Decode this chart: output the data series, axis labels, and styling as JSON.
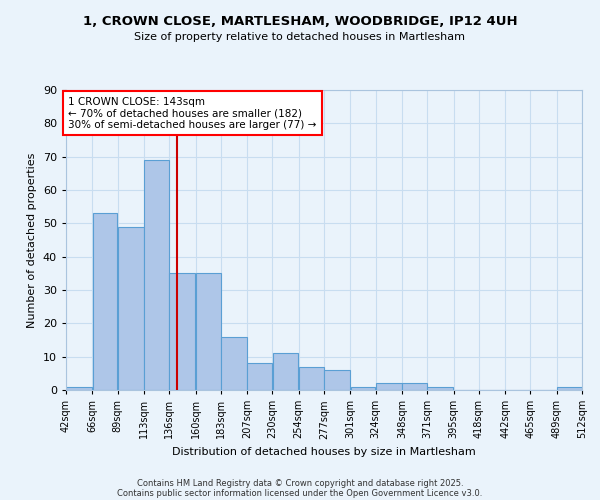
{
  "title_line1": "1, CROWN CLOSE, MARTLESHAM, WOODBRIDGE, IP12 4UH",
  "title_line2": "Size of property relative to detached houses in Martlesham",
  "xlabel": "Distribution of detached houses by size in Martlesham",
  "ylabel": "Number of detached properties",
  "bar_values": [
    1,
    53,
    49,
    69,
    35,
    35,
    16,
    8,
    11,
    7,
    6,
    1,
    2,
    2,
    1,
    0,
    0,
    0,
    0,
    1
  ],
  "bin_edges": [
    42,
    66,
    89,
    113,
    136,
    160,
    183,
    207,
    230,
    254,
    277,
    301,
    324,
    348,
    371,
    395,
    418,
    442,
    465,
    489,
    512
  ],
  "bin_labels": [
    "42sqm",
    "66sqm",
    "89sqm",
    "113sqm",
    "136sqm",
    "160sqm",
    "183sqm",
    "207sqm",
    "230sqm",
    "254sqm",
    "277sqm",
    "301sqm",
    "324sqm",
    "348sqm",
    "371sqm",
    "395sqm",
    "418sqm",
    "442sqm",
    "465sqm",
    "489sqm",
    "512sqm"
  ],
  "bar_color": "#aec6e8",
  "bar_edge_color": "#5a9fd4",
  "vline_x": 143,
  "vline_color": "#cc0000",
  "annotation_text": "1 CROWN CLOSE: 143sqm\n← 70% of detached houses are smaller (182)\n30% of semi-detached houses are larger (77) →",
  "annotation_box_color": "white",
  "annotation_box_edge": "red",
  "ylim": [
    0,
    90
  ],
  "yticks": [
    0,
    10,
    20,
    30,
    40,
    50,
    60,
    70,
    80,
    90
  ],
  "background_color": "#eaf3fb",
  "grid_color": "#c8ddf0",
  "footer_line1": "Contains HM Land Registry data © Crown copyright and database right 2025.",
  "footer_line2": "Contains public sector information licensed under the Open Government Licence v3.0."
}
